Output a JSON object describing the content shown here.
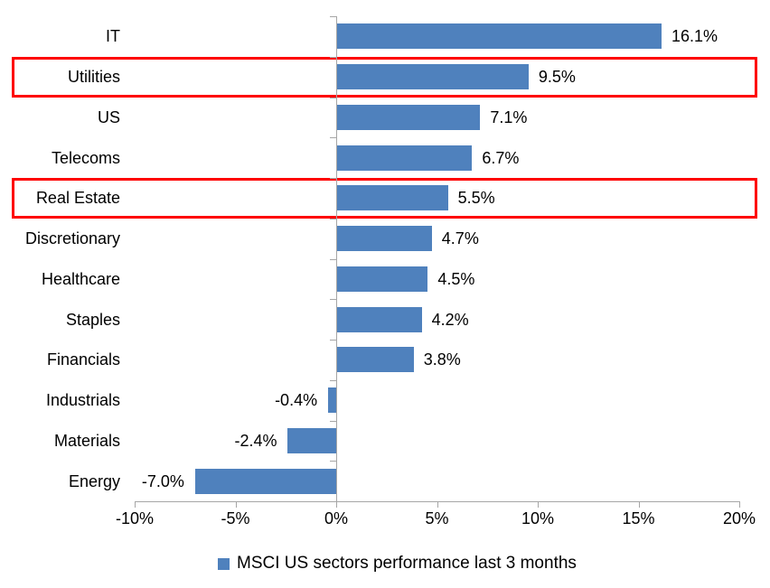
{
  "chart_data": {
    "type": "bar",
    "orientation": "horizontal",
    "title": "",
    "categories": [
      "IT",
      "Utilities",
      "US",
      "Telecoms",
      "Real Estate",
      "Discretionary",
      "Healthcare",
      "Staples",
      "Financials",
      "Industrials",
      "Materials",
      "Energy"
    ],
    "values": [
      16.1,
      9.5,
      7.1,
      6.7,
      5.5,
      4.7,
      4.5,
      4.2,
      3.8,
      -0.4,
      -2.4,
      -7.0
    ],
    "value_labels": [
      "16.1%",
      "9.5%",
      "7.1%",
      "6.7%",
      "5.5%",
      "4.7%",
      "4.5%",
      "4.2%",
      "3.8%",
      "-0.4%",
      "-2.4%",
      "-7.0%"
    ],
    "highlighted_categories": [
      "Utilities",
      "Real Estate"
    ],
    "x_axis": {
      "min": -10,
      "max": 20,
      "tick_values": [
        -10,
        -5,
        0,
        5,
        10,
        15,
        20
      ],
      "tick_labels": [
        "-10%",
        "-5%",
        "0%",
        "5%",
        "10%",
        "15%",
        "20%"
      ]
    },
    "grid": false,
    "legend": {
      "position": "bottom",
      "label": "MSCI US sectors performance last 3 months"
    },
    "colors": {
      "bar": "#4f81bd",
      "highlight_border": "#fe0000",
      "axis": "#a6a6a6",
      "text": "#000000"
    }
  }
}
